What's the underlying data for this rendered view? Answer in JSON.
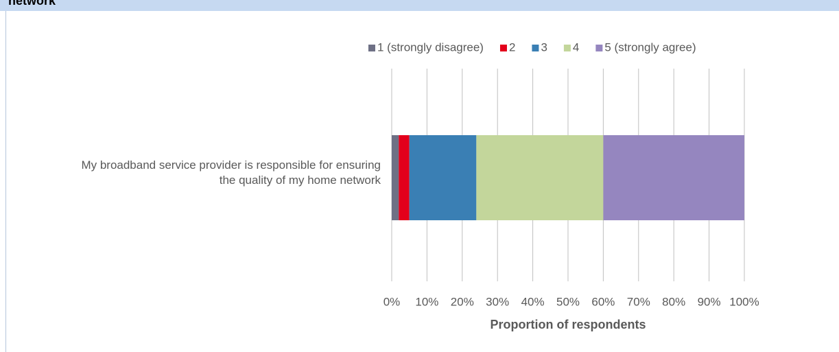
{
  "chart_data": {
    "type": "stacked-bar-horizontal",
    "title": "network",
    "categories": [
      "My broadband service provider is responsible for ensuring the quality of my home network"
    ],
    "series": [
      {
        "name": "1 (strongly disagree)",
        "color": "#6e7085",
        "values": [
          2
        ]
      },
      {
        "name": "2",
        "color": "#e3001b",
        "values": [
          3
        ]
      },
      {
        "name": "3",
        "color": "#3a7fb4",
        "values": [
          19
        ]
      },
      {
        "name": "4",
        "color": "#c3d69b",
        "values": [
          36
        ]
      },
      {
        "name": "5 (strongly agree)",
        "color": "#9586bf",
        "values": [
          40
        ]
      }
    ],
    "x_label": "Proportion of respondents",
    "xlim": [
      0,
      100
    ],
    "xticks": [
      {
        "value": 0,
        "label": "0%"
      },
      {
        "value": 10,
        "label": "10%"
      },
      {
        "value": 20,
        "label": "20%"
      },
      {
        "value": 30,
        "label": "30%"
      },
      {
        "value": 40,
        "label": "40%"
      },
      {
        "value": 50,
        "label": "50%"
      },
      {
        "value": 60,
        "label": "60%"
      },
      {
        "value": 70,
        "label": "70%"
      },
      {
        "value": 80,
        "label": "80%"
      },
      {
        "value": 90,
        "label": "90%"
      },
      {
        "value": 100,
        "label": "100%"
      }
    ],
    "grid": true,
    "legend": "top"
  }
}
